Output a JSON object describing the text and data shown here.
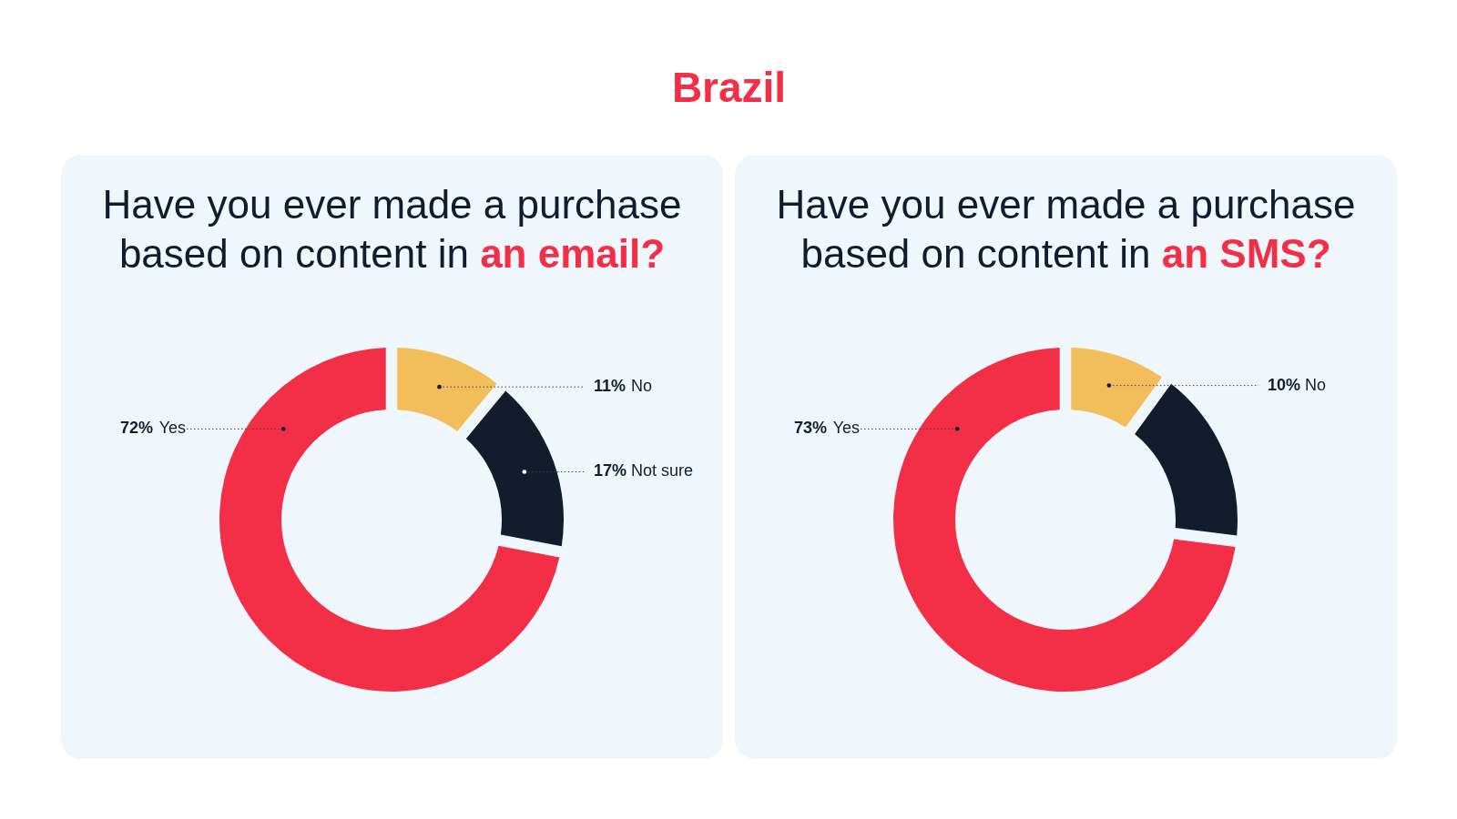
{
  "chart_data": [
    {
      "type": "other",
      "title": "Brazil"
    },
    {
      "type": "donut",
      "title": "Have you ever made a purchase based on content in an email?",
      "categories": [
        "No",
        "Not sure",
        "Yes"
      ],
      "values": [
        11,
        17,
        72
      ],
      "colors": [
        "#f2be5c",
        "#121c2d",
        "#f22f46"
      ],
      "value_labels": [
        "11%",
        "17%",
        "72%"
      ]
    },
    {
      "type": "donut",
      "title": "Have you ever made a purchase based on content in an SMS?",
      "categories": [
        "No",
        null,
        "Yes"
      ],
      "values": [
        10,
        17,
        73
      ],
      "colors": [
        "#f2be5c",
        "#121c2d",
        "#f22f46"
      ],
      "value_labels": [
        "10%",
        null,
        "73%"
      ]
    }
  ]
}
